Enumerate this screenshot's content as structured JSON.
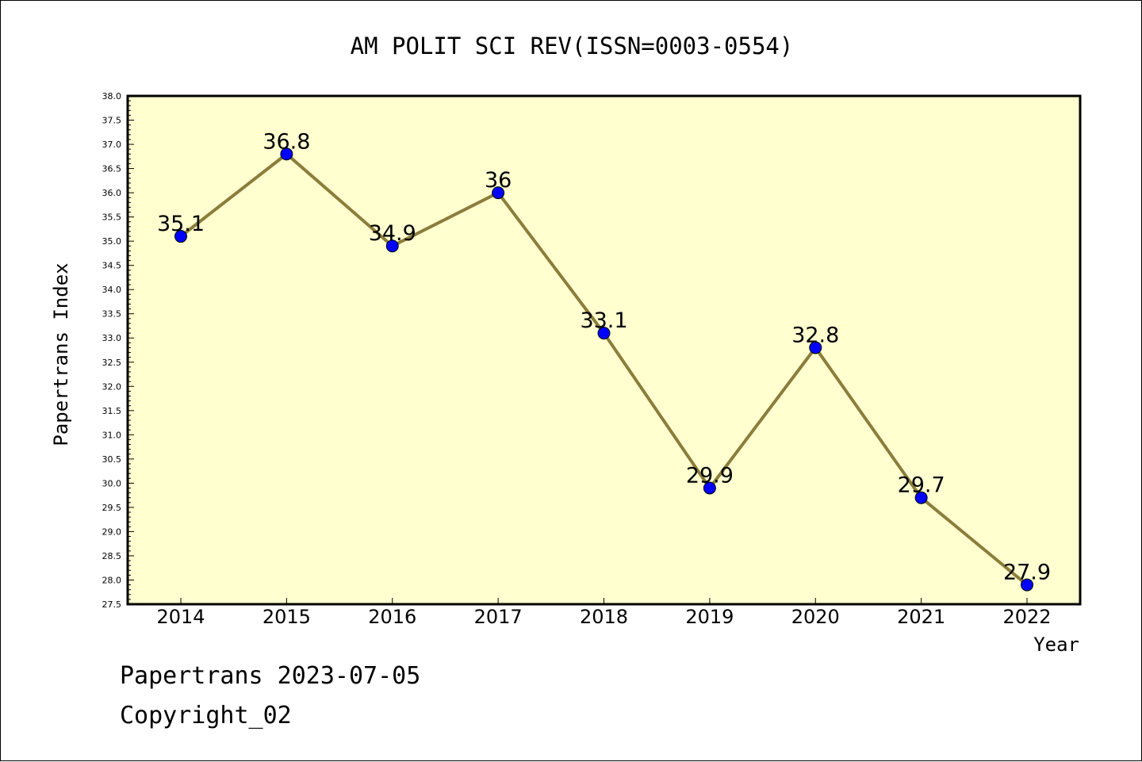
{
  "chart_data": {
    "type": "line",
    "title": "AM POLIT SCI REV(ISSN=0003-0554)",
    "xlabel": "Year",
    "ylabel": "Papertrans Index",
    "categories": [
      "2014",
      "2015",
      "2016",
      "2017",
      "2018",
      "2019",
      "2020",
      "2021",
      "2022"
    ],
    "series": [
      {
        "values": [
          35.1,
          36.8,
          34.9,
          36.0,
          33.1,
          29.9,
          32.8,
          29.7,
          27.9
        ],
        "labels": [
          "35.1",
          "36.8",
          "34.9",
          "36",
          "33.1",
          "29.9",
          "32.8",
          "29.7",
          "27.9"
        ],
        "line_color": "#8b7d3a",
        "marker_color": "#0000ff"
      }
    ],
    "ylim": [
      27.5,
      38.0
    ],
    "y_ticks": [
      "27.5",
      "28.0",
      "28.5",
      "29.0",
      "29.5",
      "30.0",
      "30.5",
      "31.0",
      "31.5",
      "32.0",
      "32.5",
      "33.0",
      "33.5",
      "34.0",
      "34.5",
      "35.0",
      "35.5",
      "36.0",
      "36.5",
      "37.0",
      "37.5",
      "38.0"
    ],
    "plot_background": "#ffffd0",
    "grid": false
  },
  "footer": {
    "date_line": "Papertrans 2023-07-05",
    "copyright": "Copyright_02"
  }
}
